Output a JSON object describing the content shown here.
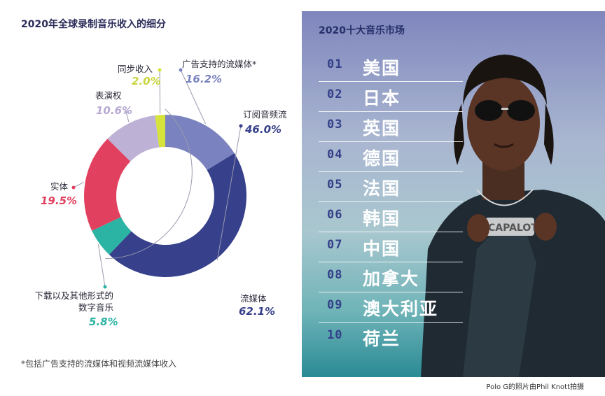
{
  "left_chart": {
    "title": "2020年全球录制音乐收入的细分",
    "footnote": "*包括广告支持的流媒体和视频流媒体收入"
  },
  "chart_data": {
    "type": "pie",
    "title": "2020年全球录制音乐收入的细分",
    "unit": "%",
    "slices": [
      {
        "name": "广告支持的流媒体*",
        "value": 16.2,
        "label": "16.2%",
        "color": "#7a83bf"
      },
      {
        "name": "订阅音频流",
        "value": 46.0,
        "label": "46.0%",
        "color": "#37408b"
      },
      {
        "name": "下载以及其他形式的数字音乐",
        "value": 5.8,
        "label": "5.8%",
        "color": "#2bb3a4"
      },
      {
        "name": "实体",
        "value": 19.5,
        "label": "19.5%",
        "color": "#e2405f"
      },
      {
        "name": "表演权",
        "value": 10.6,
        "label": "10.6%",
        "color": "#bdb1d6"
      },
      {
        "name": "同步收入",
        "value": 2.0,
        "label": "2.0%",
        "color": "#d6e33d"
      }
    ],
    "groups": [
      {
        "name": "流媒体",
        "value": 62.1,
        "label": "62.1%",
        "color": "#37408b"
      }
    ]
  },
  "right_panel": {
    "title": "2020十大音乐市场",
    "markets": [
      {
        "rank": "01",
        "name": "美国"
      },
      {
        "rank": "02",
        "name": "日本"
      },
      {
        "rank": "03",
        "name": "英国"
      },
      {
        "rank": "04",
        "name": "德国"
      },
      {
        "rank": "05",
        "name": "法国"
      },
      {
        "rank": "06",
        "name": "韩国"
      },
      {
        "rank": "07",
        "name": "中国"
      },
      {
        "rank": "08",
        "name": "加拿大"
      },
      {
        "rank": "09",
        "name": "澳大利亚"
      },
      {
        "rank": "10",
        "name": "荷兰"
      }
    ],
    "pendant_text": "CAPALOT G"
  },
  "photo_credit": "Polo G的照片由Phil Knott拍摄"
}
